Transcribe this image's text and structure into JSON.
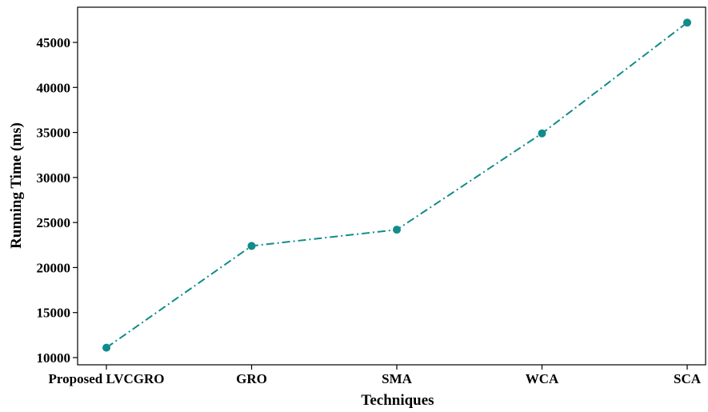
{
  "chart_data": {
    "type": "line",
    "title": "",
    "xlabel": "Techniques",
    "ylabel": "Running Time (ms)",
    "categories": [
      "Proposed LVCGRO",
      "GRO",
      "SMA",
      "WCA",
      "SCA"
    ],
    "series": [
      {
        "values": [
          11100,
          22400,
          24200,
          34900,
          47200
        ],
        "color": "#108c8a",
        "line_style": "dash-dot",
        "marker": "circle"
      }
    ],
    "ylim": [
      10000,
      48000
    ],
    "yticks": [
      10000,
      15000,
      20000,
      25000,
      30000,
      35000,
      40000,
      45000
    ],
    "grid": false,
    "legend": "none"
  }
}
